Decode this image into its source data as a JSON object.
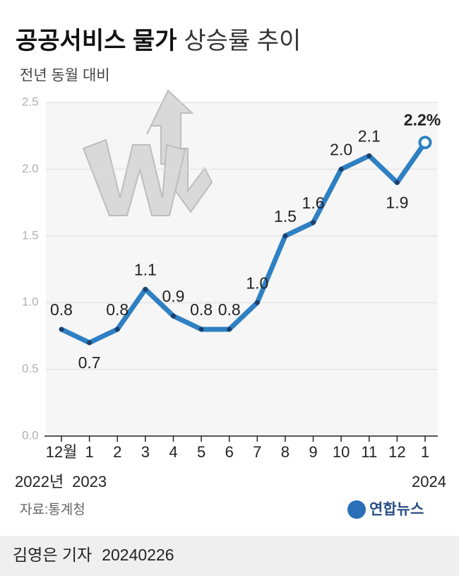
{
  "chart_data": {
    "type": "line",
    "title": "공공서비스 물가",
    "title_suffix": "상승률 추이",
    "subtitle": "전년 동월 대비",
    "categories": [
      "12월",
      "1",
      "2",
      "3",
      "4",
      "5",
      "6",
      "7",
      "8",
      "9",
      "10",
      "11",
      "12",
      "1"
    ],
    "category_sublabels": [
      "2022년",
      "2023",
      null,
      null,
      null,
      null,
      null,
      null,
      null,
      null,
      null,
      null,
      null,
      "2024"
    ],
    "values": [
      0.8,
      0.7,
      0.8,
      1.1,
      0.9,
      0.8,
      0.8,
      1.0,
      1.5,
      1.6,
      2.0,
      2.1,
      1.9,
      2.2
    ],
    "value_labels": [
      "0.8",
      "0.7",
      "0.8",
      "1.1",
      "0.9",
      "0.8",
      "0.8",
      "1.0",
      "1.5",
      "1.6",
      "2.0",
      "2.1",
      "1.9",
      "2.2%"
    ],
    "color": "#2f80c3",
    "point_color": "#1b3f6b",
    "ylim": [
      0,
      2.5
    ],
    "yticks": [
      {
        "value": 0,
        "label": "0.0"
      },
      0.5,
      {
        "value": 1,
        "label": "1.0"
      },
      1.5,
      {
        "value": 2,
        "label": "2.0"
      },
      2.5
    ],
    "grid": true,
    "source": "자료:통계청",
    "logo": "연합뉴스",
    "byline": "김영은 기자",
    "date": "20240226"
  }
}
